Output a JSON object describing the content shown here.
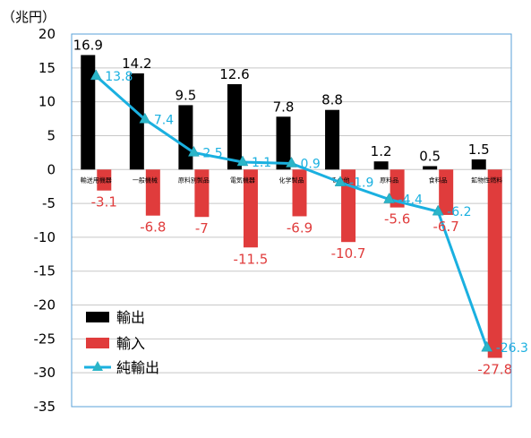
{
  "chart_data": {
    "type": "bar",
    "unit_label": "（兆円）",
    "categories": [
      "輸送用機器",
      "一般機械",
      "原料別製品",
      "電気機器",
      "化学製品",
      "その他",
      "原料品",
      "食料品",
      "鉱物性燃料"
    ],
    "series": [
      {
        "name": "輸出",
        "type": "bar",
        "color": "#000000",
        "values": [
          16.9,
          14.2,
          9.5,
          12.6,
          7.8,
          8.8,
          1.2,
          0.5,
          1.5
        ],
        "labels": [
          "16.9",
          "14.2",
          "9.5",
          "12.6",
          "7.8",
          "8.8",
          "1.2",
          "0.5",
          "1.5"
        ]
      },
      {
        "name": "輸入",
        "type": "bar",
        "color": "#e03c3c",
        "values": [
          -3.1,
          -6.8,
          -7,
          -11.5,
          -6.9,
          -10.7,
          -5.6,
          -6.7,
          -27.8
        ],
        "labels": [
          "-3.1",
          "-6.8",
          "-7",
          "-11.5",
          "-6.9",
          "-10.7",
          "-5.6",
          "-6.7",
          "-27.8"
        ]
      },
      {
        "name": "純輸出",
        "type": "line",
        "color": "#1ab0e0",
        "values": [
          13.8,
          7.4,
          2.5,
          1.1,
          0.9,
          -1.9,
          -4.4,
          -6.2,
          -26.3
        ],
        "labels": [
          "13.8",
          "7.4",
          "2.5",
          "1.1",
          "0.9",
          "-1.9",
          "-4.4",
          "-6.2",
          "-26.3"
        ]
      }
    ],
    "ylim": [
      -35,
      20
    ],
    "yticks": [
      20,
      15,
      10,
      5,
      0,
      -5,
      -10,
      -15,
      -20,
      -25,
      -30,
      -35
    ],
    "grid": true,
    "legend": "bottom-left"
  }
}
